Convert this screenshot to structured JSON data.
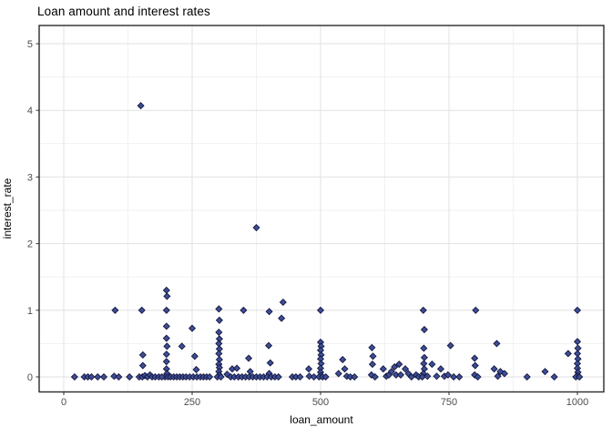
{
  "title": "Loan amount and interest rates",
  "chart_data": {
    "type": "scatter",
    "title": "Loan amount and interest rates",
    "xlabel": "loan_amount",
    "ylabel": "interest_rate",
    "xlim": [
      -48,
      1052
    ],
    "ylim": [
      -0.22,
      5.28
    ],
    "x_ticks": [
      "0",
      "250",
      "500",
      "750",
      "1000"
    ],
    "x_tick_values": [
      0,
      250,
      500,
      750,
      1000
    ],
    "y_ticks": [
      "0",
      "1",
      "2",
      "3",
      "4",
      "5"
    ],
    "y_tick_values": [
      0,
      1,
      2,
      3,
      4,
      5
    ],
    "x_minor_ticks": [
      125,
      375,
      625,
      875
    ],
    "y_minor_ticks": [
      0.5,
      1.5,
      2.5,
      3.5,
      4.5
    ],
    "grid": true,
    "legend": false,
    "marker": "diamond",
    "colors": {
      "point_fill": "#3E4E96",
      "point_stroke": "#13173E",
      "grid_major": "#E2E2E2",
      "grid_minor": "#F1F1F1",
      "panel_border": "#2B2B2B",
      "tick_mark": "#333333",
      "tick_label": "#4D4D4D",
      "axis_title": "#000000",
      "title": "#000000",
      "background": "#FFFFFF"
    },
    "points": [
      [
        150,
        4.07
      ],
      [
        375,
        2.24
      ],
      [
        100,
        1.0
      ],
      [
        152,
        1.0
      ],
      [
        302,
        1.02
      ],
      [
        350,
        1.0
      ],
      [
        400,
        0.98
      ],
      [
        424,
        0.88
      ],
      [
        427,
        1.12
      ],
      [
        500,
        1.0
      ],
      [
        700,
        1.0
      ],
      [
        802,
        1.0
      ],
      [
        1000,
        1.0
      ],
      [
        200,
        1.3
      ],
      [
        201,
        1.21
      ],
      [
        200,
        1.0
      ],
      [
        200,
        0.76
      ],
      [
        200,
        0.58
      ],
      [
        201,
        0.46
      ],
      [
        200,
        0.34
      ],
      [
        200,
        0.23
      ],
      [
        200,
        0.12
      ],
      [
        201,
        0.05
      ],
      [
        197,
        0
      ],
      [
        203,
        0
      ],
      [
        208,
        0
      ],
      [
        230,
        0.46
      ],
      [
        250,
        0.73
      ],
      [
        255,
        0.31
      ],
      [
        258,
        0.11
      ],
      [
        214,
        0
      ],
      [
        220,
        0
      ],
      [
        226,
        0
      ],
      [
        232,
        0
      ],
      [
        238,
        0
      ],
      [
        245,
        0
      ],
      [
        252,
        0
      ],
      [
        259,
        0
      ],
      [
        266,
        0
      ],
      [
        272,
        0
      ],
      [
        278,
        0
      ],
      [
        284,
        0
      ],
      [
        303,
        0.85
      ],
      [
        302,
        0.67
      ],
      [
        303,
        0.57
      ],
      [
        302,
        0.5
      ],
      [
        303,
        0.42
      ],
      [
        302,
        0.35
      ],
      [
        303,
        0.26
      ],
      [
        302,
        0.19
      ],
      [
        303,
        0.14
      ],
      [
        302,
        0.08
      ],
      [
        303,
        0.03
      ],
      [
        299,
        0
      ],
      [
        306,
        0
      ],
      [
        318,
        0.04
      ],
      [
        328,
        0.12
      ],
      [
        337,
        0.13
      ],
      [
        360,
        0.28
      ],
      [
        363,
        0.08
      ],
      [
        399,
        0.47
      ],
      [
        402,
        0.21
      ],
      [
        400,
        0.05
      ],
      [
        325,
        0
      ],
      [
        332,
        0
      ],
      [
        340,
        0
      ],
      [
        347,
        0
      ],
      [
        354,
        0
      ],
      [
        361,
        0
      ],
      [
        368,
        0
      ],
      [
        375,
        0
      ],
      [
        382,
        0
      ],
      [
        389,
        0
      ],
      [
        396,
        0
      ],
      [
        404,
        0
      ],
      [
        411,
        0
      ],
      [
        418,
        0
      ],
      [
        445,
        0
      ],
      [
        452,
        0
      ],
      [
        460,
        0
      ],
      [
        477,
        0.12
      ],
      [
        478,
        0.01
      ],
      [
        487,
        0
      ],
      [
        500,
        0.52
      ],
      [
        501,
        0.46
      ],
      [
        500,
        0.4
      ],
      [
        501,
        0.33
      ],
      [
        500,
        0.27
      ],
      [
        501,
        0.2
      ],
      [
        500,
        0.13
      ],
      [
        500,
        0.07
      ],
      [
        501,
        0.02
      ],
      [
        497,
        0
      ],
      [
        504,
        0
      ],
      [
        510,
        0
      ],
      [
        535,
        0.05
      ],
      [
        543,
        0.26
      ],
      [
        547,
        0.12
      ],
      [
        551,
        0.01
      ],
      [
        558,
        0
      ],
      [
        566,
        0
      ],
      [
        600,
        0.44
      ],
      [
        602,
        0.31
      ],
      [
        601,
        0.19
      ],
      [
        599,
        0.03
      ],
      [
        606,
        0
      ],
      [
        622,
        0.12
      ],
      [
        628,
        0.01
      ],
      [
        633,
        0.03
      ],
      [
        638,
        0.08
      ],
      [
        644,
        0.15
      ],
      [
        647,
        0.03
      ],
      [
        653,
        0.19
      ],
      [
        656,
        0.03
      ],
      [
        665,
        0.12
      ],
      [
        671,
        0.05
      ],
      [
        677,
        0
      ],
      [
        686,
        0.03
      ],
      [
        691,
        0
      ],
      [
        702,
        0.71
      ],
      [
        701,
        0.43
      ],
      [
        702,
        0.29
      ],
      [
        701,
        0.2
      ],
      [
        702,
        0.12
      ],
      [
        700,
        0.05
      ],
      [
        698,
        0
      ],
      [
        708,
        0.01
      ],
      [
        717,
        0.19
      ],
      [
        726,
        0.01
      ],
      [
        734,
        0.12
      ],
      [
        741,
        0.01
      ],
      [
        748,
        0.03
      ],
      [
        753,
        0.47
      ],
      [
        759,
        0
      ],
      [
        770,
        0
      ],
      [
        800,
        0.28
      ],
      [
        801,
        0.17
      ],
      [
        800,
        0.03
      ],
      [
        806,
        0
      ],
      [
        838,
        0.12
      ],
      [
        843,
        0.5
      ],
      [
        845,
        0.01
      ],
      [
        850,
        0.08
      ],
      [
        858,
        0.05
      ],
      [
        902,
        0
      ],
      [
        937,
        0.08
      ],
      [
        955,
        0
      ],
      [
        982,
        0.35
      ],
      [
        1000,
        0.53
      ],
      [
        1001,
        0.43
      ],
      [
        1000,
        0.35
      ],
      [
        1001,
        0.27
      ],
      [
        1000,
        0.2
      ],
      [
        1000,
        0.13
      ],
      [
        1001,
        0.07
      ],
      [
        1000,
        0.02
      ],
      [
        997,
        0
      ],
      [
        1004,
        0
      ],
      [
        21,
        0
      ],
      [
        40,
        0
      ],
      [
        47,
        0
      ],
      [
        54,
        0
      ],
      [
        66,
        0
      ],
      [
        78,
        0
      ],
      [
        98,
        0.01
      ],
      [
        107,
        0
      ],
      [
        128,
        0
      ],
      [
        147,
        0
      ],
      [
        153,
        0
      ],
      [
        158,
        0.02
      ],
      [
        163,
        0
      ],
      [
        168,
        0.03
      ],
      [
        172,
        0
      ],
      [
        178,
        0
      ],
      [
        185,
        0
      ],
      [
        191,
        0
      ],
      [
        154,
        0.33
      ],
      [
        154,
        0.17
      ]
    ]
  }
}
